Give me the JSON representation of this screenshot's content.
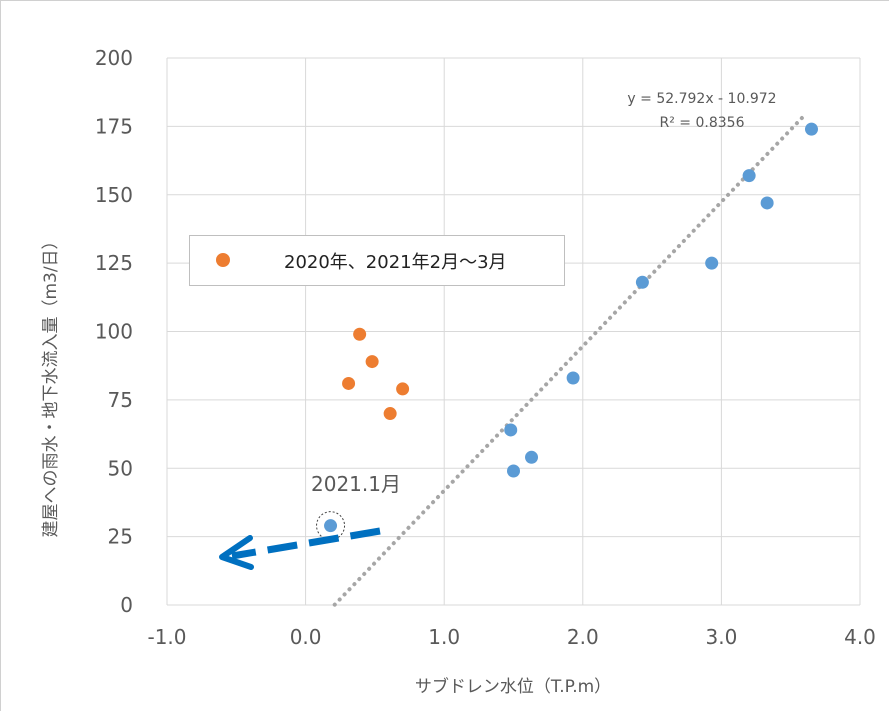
{
  "chart_data": {
    "type": "scatter",
    "xlabel": "サブドレン水位（T.P.m）",
    "ylabel": "建屋への雨水・地下水流入量（m3/日）",
    "xlim": [
      -1.0,
      4.0
    ],
    "ylim": [
      0,
      200
    ],
    "x_ticks": [
      "-1.0",
      "0.0",
      "1.0",
      "2.0",
      "3.0",
      "4.0"
    ],
    "y_ticks": [
      "0",
      "25",
      "50",
      "75",
      "100",
      "125",
      "150",
      "175",
      "200"
    ],
    "grid": true,
    "series": [
      {
        "color": "#5b9bd5",
        "points": [
          {
            "x": 0.18,
            "y": 29
          },
          {
            "x": 1.48,
            "y": 64
          },
          {
            "x": 1.5,
            "y": 49
          },
          {
            "x": 1.63,
            "y": 54
          },
          {
            "x": 1.93,
            "y": 83
          },
          {
            "x": 2.43,
            "y": 118
          },
          {
            "x": 2.93,
            "y": 125
          },
          {
            "x": 3.2,
            "y": 157
          },
          {
            "x": 3.33,
            "y": 147
          },
          {
            "x": 3.65,
            "y": 174
          }
        ]
      },
      {
        "name": "2020年、2021年2月～3月",
        "color": "#ed7d31",
        "points": [
          {
            "x": 0.31,
            "y": 81
          },
          {
            "x": 0.39,
            "y": 99
          },
          {
            "x": 0.48,
            "y": 89
          },
          {
            "x": 0.61,
            "y": 70
          },
          {
            "x": 0.7,
            "y": 79
          }
        ]
      }
    ],
    "trendline": {
      "slope": 52.792,
      "intercept": -10.972,
      "x_range": [
        0.21,
        3.61
      ],
      "equation_label": "y = 52.792x - 10.972",
      "r2_label": "R² = 0.8356",
      "color": "#a6a6a6"
    },
    "legend": {
      "placement": "center-left",
      "label": "2020年、2021年2月～3月"
    },
    "annotations": {
      "highlight_label": "2021.1月",
      "highlight_point": {
        "x": 0.18,
        "y": 29
      },
      "arrow_color": "#0070c0"
    }
  }
}
